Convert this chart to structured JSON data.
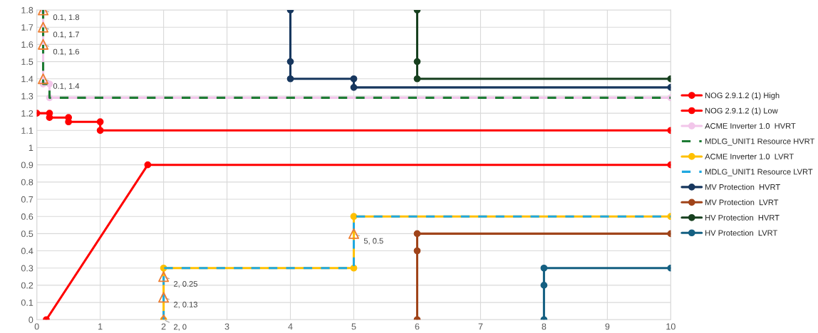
{
  "chart_data": {
    "type": "line",
    "xlim": [
      0,
      10
    ],
    "ylim": [
      0,
      1.8
    ],
    "xticks": [
      0,
      1,
      2,
      3,
      4,
      5,
      6,
      7,
      8,
      9,
      10
    ],
    "yticks": [
      0,
      0.1,
      0.2,
      0.3,
      0.4,
      0.5,
      0.6,
      0.7,
      0.8,
      0.9,
      1,
      1.1,
      1.2,
      1.3,
      1.4,
      1.5,
      1.6,
      1.7,
      1.8
    ],
    "grid": true,
    "legend": "right",
    "marker": "circle",
    "line_style": "solid",
    "series": [
      {
        "name": "NOG 2.9.1.2 (1) High",
        "color": "#ff0000",
        "x": [
          0,
          0.2,
          0.2,
          0.5,
          0.5,
          1,
          1,
          10
        ],
        "values": [
          1.2,
          1.2,
          1.175,
          1.175,
          1.15,
          1.15,
          1.1,
          1.1
        ]
      },
      {
        "name": "NOG 2.9.1.2 (1) Low",
        "color": "#ff0000",
        "x": [
          0.15,
          1.75,
          10
        ],
        "values": [
          0,
          0.9,
          0.9
        ]
      },
      {
        "name": "ACME Inverter 1.0  HVRT",
        "color": "#f2c6ea",
        "x": [
          0.1,
          0.1,
          0.2,
          0.2,
          10
        ],
        "values": [
          1.8,
          1.37,
          1.37,
          1.29,
          1.29
        ]
      },
      {
        "name": "MDLG_UNIT1 Resource HVRT",
        "color": "#1e7b34",
        "line_style": "dashed",
        "marker": "none",
        "x": [
          0.1,
          0.1,
          0.2,
          0.2,
          10
        ],
        "values": [
          1.8,
          1.37,
          1.37,
          1.29,
          1.29
        ]
      },
      {
        "name": "ACME Inverter 1.0  LVRT",
        "color": "#ffc000",
        "x": [
          2,
          2,
          5,
          5,
          10
        ],
        "values": [
          0,
          0.3,
          0.3,
          0.6,
          0.6
        ]
      },
      {
        "name": "MDLG_UNIT1 Resource LVRT",
        "color": "#1fa8e0",
        "line_style": "dashed",
        "marker": "none",
        "x": [
          2,
          2,
          5,
          5,
          10
        ],
        "values": [
          0,
          0.3,
          0.3,
          0.6,
          0.6
        ]
      },
      {
        "name": "MV Protection  HVRT",
        "color": "#17375e",
        "x": [
          4,
          4,
          4,
          5,
          5,
          10
        ],
        "values": [
          1.8,
          1.5,
          1.4,
          1.4,
          1.35,
          1.35
        ]
      },
      {
        "name": "MV Protection  LVRT",
        "color": "#a0441a",
        "x": [
          6,
          6,
          6,
          10
        ],
        "values": [
          0,
          0.4,
          0.5,
          0.5
        ]
      },
      {
        "name": "HV Protection  HVRT",
        "color": "#17401f",
        "x": [
          6,
          6,
          6,
          10
        ],
        "values": [
          1.8,
          1.5,
          1.4,
          1.4
        ]
      },
      {
        "name": "HV Protection  LVRT",
        "color": "#156082",
        "x": [
          8,
          8,
          8,
          10
        ],
        "values": [
          0,
          0.2,
          0.3,
          0.3
        ]
      },
      {
        "type": "scatter",
        "marker": "triangle",
        "color": "#ed7d31",
        "x": [
          0.1,
          0.1,
          0.1,
          0.1,
          2,
          2,
          2,
          5
        ],
        "values": [
          1.8,
          1.7,
          1.6,
          1.4,
          0.25,
          0.13,
          0,
          0.5
        ]
      }
    ],
    "annotations": [
      {
        "text": "0.1, 1.8",
        "x": 0.1,
        "y": 1.8
      },
      {
        "text": "0.1, 1.7",
        "x": 0.1,
        "y": 1.7
      },
      {
        "text": "0.1, 1.6",
        "x": 0.1,
        "y": 1.6
      },
      {
        "text": "0.1, 1.4",
        "x": 0.1,
        "y": 1.4
      },
      {
        "text": "2, 0.25",
        "x": 2,
        "y": 0.25
      },
      {
        "text": "2, 0.13",
        "x": 2,
        "y": 0.13
      },
      {
        "text": "2, 0",
        "x": 2,
        "y": 0
      },
      {
        "text": "5, 0.5",
        "x": 5,
        "y": 0.5
      }
    ]
  }
}
